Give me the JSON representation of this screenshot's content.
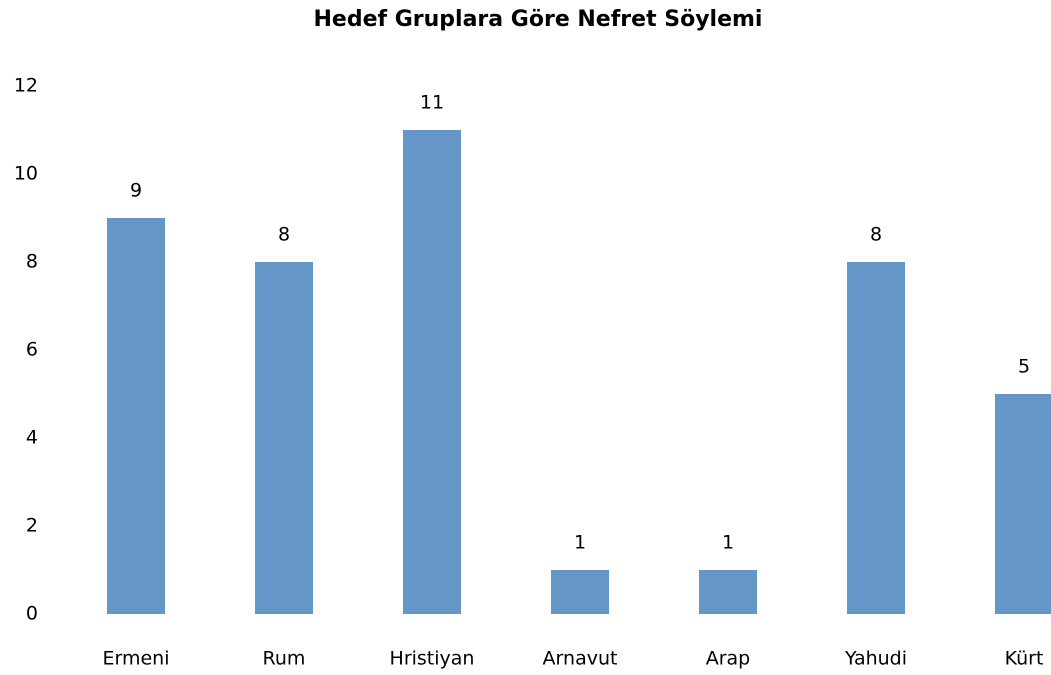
{
  "chart_data": {
    "type": "bar",
    "title": "Hedef Gruplara Göre Nefret Söylemi",
    "categories": [
      "Ermeni",
      "Rum",
      "Hristiyan",
      "Arnavut",
      "Arap",
      "Yahudi",
      "Kürt"
    ],
    "values": [
      9,
      8,
      11,
      1,
      1,
      8,
      5
    ],
    "color": "#6497c8",
    "ylim": [
      0,
      12
    ],
    "yticks": [
      0,
      2,
      4,
      6,
      8,
      10,
      12
    ],
    "grid": false
  }
}
